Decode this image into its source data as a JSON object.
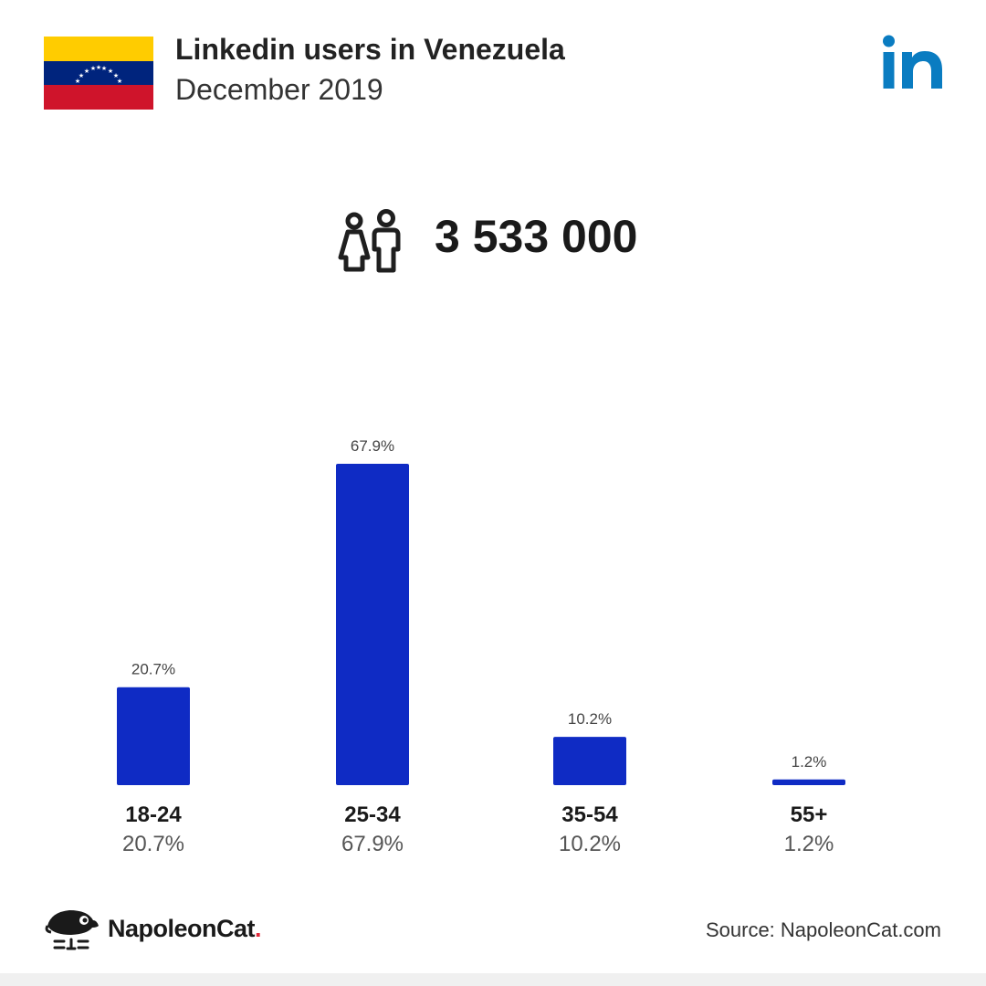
{
  "header": {
    "title": "Linkedin users in Venezuela",
    "subtitle": "December 2019"
  },
  "icons": {
    "flag": "venezuela-flag-icon",
    "brand": "linkedin-logo-icon",
    "users": "users-icon",
    "logo": "napoleoncat-logo-icon"
  },
  "total_users": "3 533 000",
  "chart_data": {
    "type": "bar",
    "categories": [
      "18-24",
      "25-34",
      "35-54",
      "55+"
    ],
    "values": [
      20.7,
      67.9,
      10.2,
      1.2
    ],
    "data_labels": [
      "20.7%",
      "67.9%",
      "10.2%",
      "1.2%"
    ],
    "value_labels": [
      "20.7%",
      "67.9%",
      "10.2%",
      "1.2%"
    ],
    "unit": "%",
    "ylim": [
      0,
      67.9
    ],
    "grid": false,
    "bar_color": "#0f2bc4"
  },
  "colors": {
    "bar": "#0f2bc4",
    "linkedin": "#0a7cc1",
    "flag_yellow": "#ffcc00",
    "flag_blue": "#00247d",
    "flag_red": "#cf142b",
    "brand_accent": "#e0293a"
  },
  "footer": {
    "brand_name": "NapoleonCat",
    "brand_dot": ".",
    "source": "Source: NapoleonCat.com"
  }
}
